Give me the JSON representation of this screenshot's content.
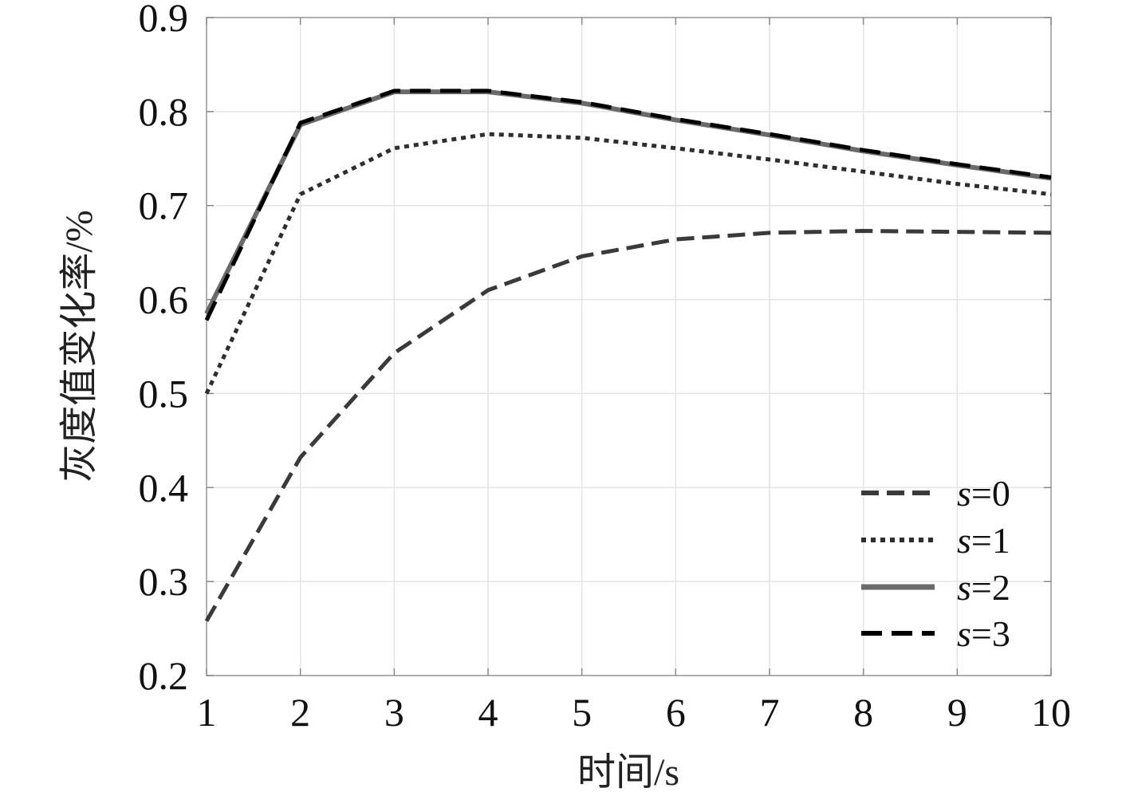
{
  "chart_data": {
    "type": "line",
    "title": "",
    "xlabel": "时间/s",
    "ylabel": "灰度值变化率/%",
    "x": [
      1,
      2,
      3,
      4,
      5,
      6,
      7,
      8,
      9,
      10
    ],
    "xlim": [
      1,
      10
    ],
    "ylim": [
      0.2,
      0.9
    ],
    "xticks": [
      "1",
      "2",
      "3",
      "4",
      "5",
      "6",
      "7",
      "8",
      "9",
      "10"
    ],
    "yticks": [
      "0.2",
      "0.3",
      "0.4",
      "0.5",
      "0.6",
      "0.7",
      "0.8",
      "0.9"
    ],
    "grid": true,
    "legend_position": "bottom-right",
    "series": [
      {
        "name_var": "s",
        "name_eq": "=0",
        "style": "dashed",
        "color": "#3a3a3a",
        "values": [
          0.258,
          0.432,
          0.543,
          0.61,
          0.646,
          0.664,
          0.671,
          0.673,
          0.672,
          0.671
        ]
      },
      {
        "name_var": "s",
        "name_eq": "=1",
        "style": "dotted",
        "color": "#2e2e2e",
        "values": [
          0.5,
          0.712,
          0.761,
          0.776,
          0.772,
          0.761,
          0.749,
          0.736,
          0.723,
          0.712
        ]
      },
      {
        "name_var": "s",
        "name_eq": "=2",
        "style": "solid",
        "color": "#6a6a6a",
        "values": [
          0.585,
          0.786,
          0.821,
          0.821,
          0.809,
          0.791,
          0.775,
          0.758,
          0.743,
          0.729
        ]
      },
      {
        "name_var": "s",
        "name_eq": "=3",
        "style": "dashed-bold",
        "color": "#000000",
        "values": [
          0.578,
          0.788,
          0.822,
          0.822,
          0.81,
          0.792,
          0.776,
          0.759,
          0.744,
          0.73
        ]
      }
    ]
  }
}
